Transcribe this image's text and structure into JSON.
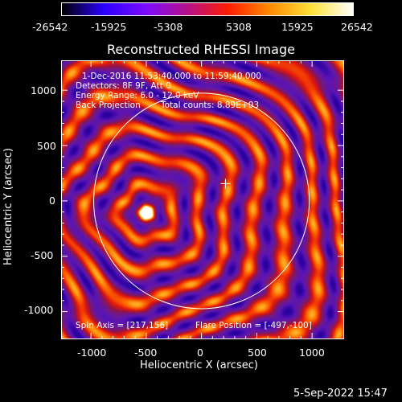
{
  "colorbar": {
    "ticks": [
      "-26542",
      "-15925",
      "-5308",
      "5308",
      "15925",
      "26542"
    ],
    "colors": [
      "#000000",
      "#2a00ff",
      "#7a0cff",
      "#b4108c",
      "#ff1d00",
      "#ff8a00",
      "#ffe13a",
      "#ffffff"
    ]
  },
  "plot": {
    "title": "Reconstructed RHESSI Image",
    "xlabel": "Heliocentric X (arcsec)",
    "ylabel": "Heliocentric Y (arcsec)",
    "x_ticks": [
      "-1000",
      "-500",
      "0",
      "500",
      "1000"
    ],
    "y_ticks": [
      "1000",
      "500",
      "0",
      "-500",
      "-1000"
    ],
    "xlim": [
      -1270,
      1290
    ],
    "ylim": [
      -1250,
      1270
    ],
    "annotations": {
      "time_range": "1-Dec-2016 11:53:40.000 to 11:59:40.000",
      "detectors": "Detectors: 8F 9F, Att 0",
      "energy": "Energy Range: 6.0 - 12.0 keV",
      "method": "Back Projection",
      "counts": "Total counts: 8.89E+03",
      "spin_axis": "Spin Axis = [217,156]",
      "flare_position": "Flare Position = [-497,-100]"
    },
    "source_center": [
      -497,
      -100
    ],
    "cross_position": [
      217,
      156
    ],
    "solar_limb_radius": 975
  },
  "footer": {
    "timestamp": "5-Sep-2022 15:47"
  }
}
